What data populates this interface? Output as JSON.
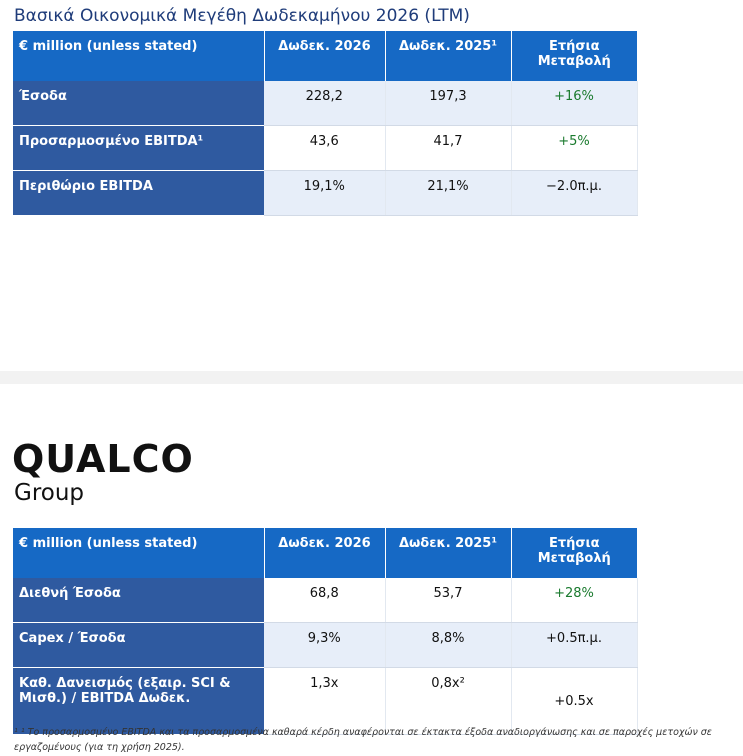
{
  "title": "Βασικά Οικονομικά Μεγέθη Δωδεκαμήνου 2026 (LTM)",
  "table1": {
    "headers": [
      "€ million (unless stated)",
      "Δωδεκ.  2026",
      "Δωδεκ.  2025¹",
      "Ετήσια Μεταβολή"
    ],
    "rows": [
      {
        "label": "Έσοδα",
        "v2026": "228,2",
        "v2025": "197,3",
        "change": "+16%"
      },
      {
        "label": "Προσαρμοσμένο EBITDA¹",
        "v2026": "43,6",
        "v2025": "41,7",
        "change": "+5%"
      },
      {
        "label": "Περιθώριο EBITDA",
        "v2026": "19,1%",
        "v2025": "21,1%",
        "change": "−2.0π.μ."
      }
    ]
  },
  "logo": {
    "line1": "QUALCO",
    "line2": "Group"
  },
  "table2": {
    "headers": [
      "€ million (unless stated)",
      "Δωδεκ.  2026",
      "Δωδεκ.  2025¹",
      "Ετήσια Μεταβολή"
    ],
    "rows": [
      {
        "label": "Διεθνή Έσοδα",
        "v2026": "68,8",
        "v2025": "53,7",
        "change": "+28%"
      },
      {
        "label": "Capex / Έσοδα",
        "v2026": "9,3%",
        "v2025": "8,8%",
        "change": "+0.5π.μ."
      },
      {
        "label": "Καθ. Δανεισμός (εξαιρ. SCI & Μισθ.) / EBITDA Δωδεκ.",
        "v2026": "1,3x",
        "v2025": "0,8x²",
        "change": "+0.5x"
      }
    ]
  },
  "footnote": "¹ ¹ Το προσαρμοσμένο EBITDA και τα προσαρμοσμένα καθαρά κέρδη αναφέρονται σε έκτακτα έξοδα αναδιοργάνωσης και σε παροχές μετοχών σε εργαζομένους (για τη χρήση 2025).",
  "colors": {
    "header_blue": "#1669c5",
    "label_blue": "#2f5aa0",
    "positive_green": "#1a7a2e",
    "row_alt": "#e7eef9"
  }
}
